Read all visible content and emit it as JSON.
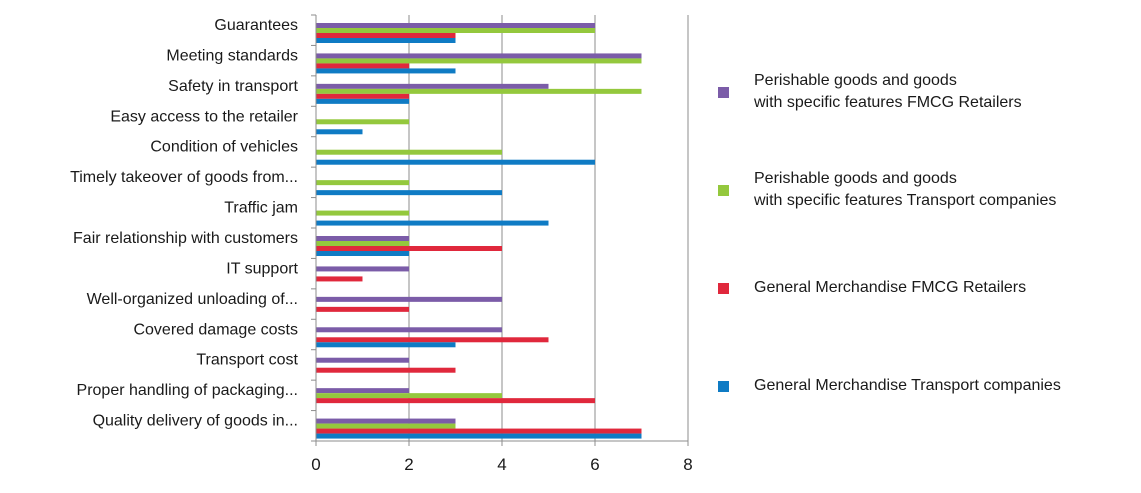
{
  "chart_data": {
    "type": "bar",
    "orientation": "horizontal",
    "categories": [
      "Guarantees",
      "Meeting standards",
      "Safety in transport",
      "Easy access to the retailer",
      "Condition of vehicles",
      "Timely takeover of goods from...",
      "Traffic jam",
      "Fair relationship with customers",
      "IT support",
      "Well-organized unloading of...",
      "Covered damage costs",
      "Transport cost",
      "Proper handling of packaging...",
      "Quality delivery of goods in..."
    ],
    "series": [
      {
        "name": "Perishable goods and goods\nwith specific features FMCG Retailers",
        "color": "#7b5ca8",
        "values": [
          6,
          7,
          5,
          0,
          0,
          0,
          0,
          2,
          2,
          4,
          4,
          2,
          2,
          3
        ]
      },
      {
        "name": "Perishable goods and goods\nwith specific features Transport companies",
        "color": "#94c83d",
        "values": [
          6,
          7,
          7,
          2,
          4,
          2,
          2,
          2,
          0,
          0,
          0,
          0,
          4,
          3
        ]
      },
      {
        "name": "General Merchandise FMCG Retailers",
        "color": "#e0283c",
        "values": [
          3,
          2,
          2,
          0,
          0,
          0,
          0,
          4,
          1,
          2,
          5,
          3,
          6,
          7
        ]
      },
      {
        "name": "General Merchandise Transport companies",
        "color": "#0f7bc4",
        "values": [
          3,
          3,
          2,
          1,
          6,
          4,
          5,
          2,
          0,
          0,
          3,
          0,
          0,
          7
        ]
      }
    ],
    "xlim": [
      0,
      8
    ],
    "xticks": [
      "0",
      "2",
      "4",
      "6",
      "8"
    ],
    "grid": true,
    "legend_position": "right"
  }
}
